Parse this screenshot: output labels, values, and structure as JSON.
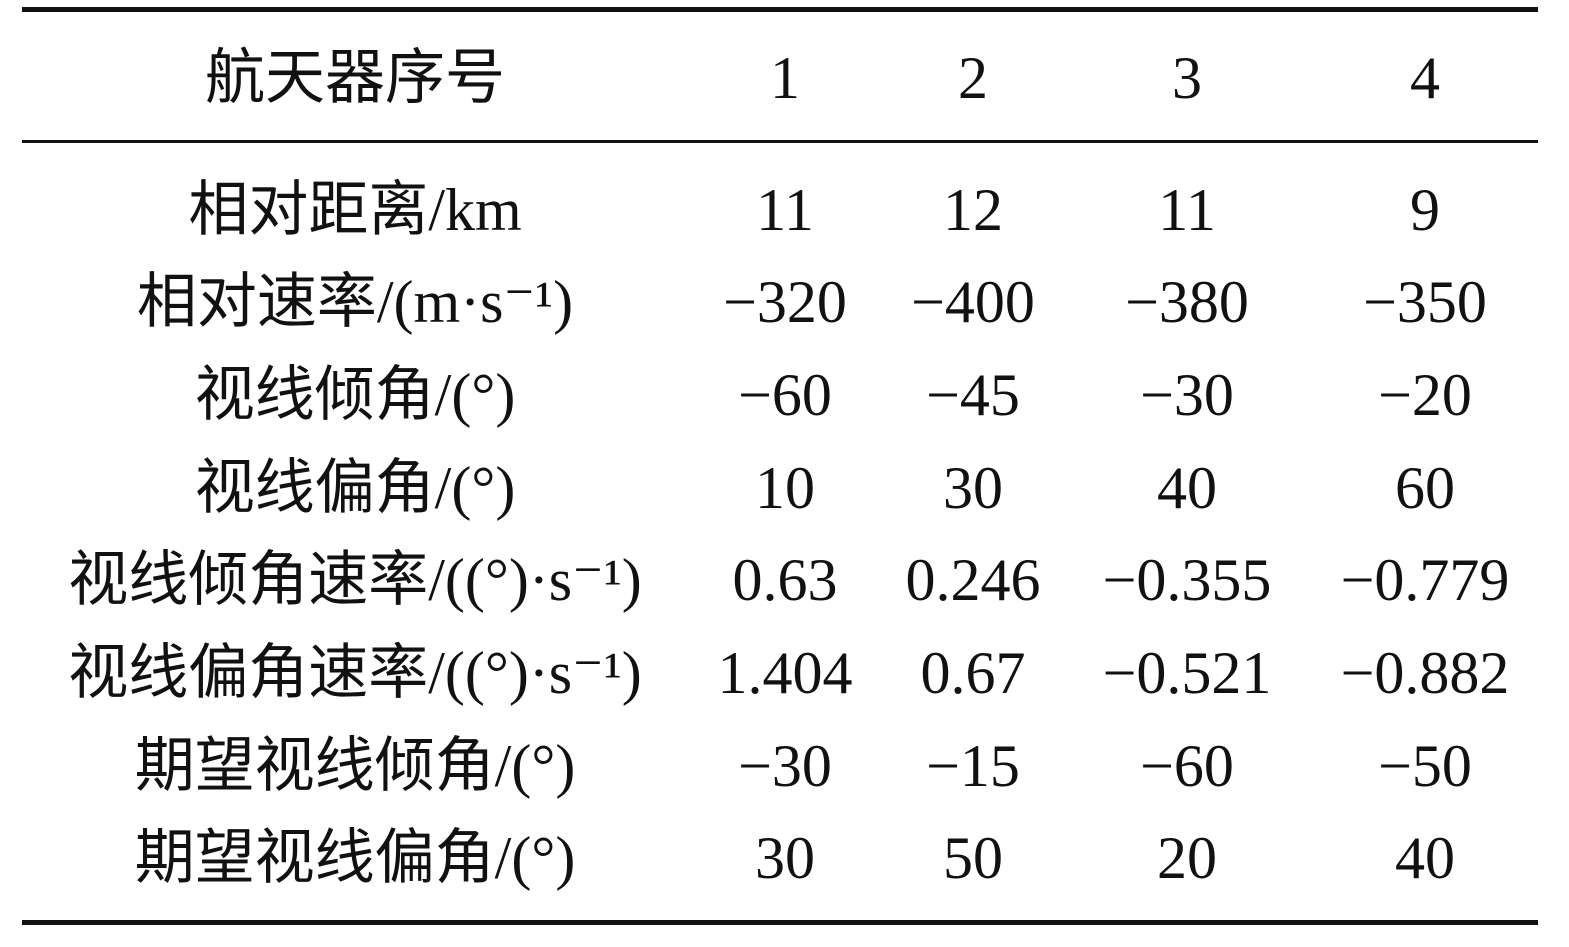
{
  "table": {
    "header": [
      "航天器序号",
      "1",
      "2",
      "3",
      "4"
    ],
    "rows": [
      [
        "相对距离/km",
        "11",
        "12",
        "11",
        "9"
      ],
      [
        "相对速率/(m·s⁻¹)",
        "−320",
        "−400",
        "−380",
        "−350"
      ],
      [
        "视线倾角/(°)",
        "−60",
        "−45",
        "−30",
        "−20"
      ],
      [
        "视线偏角/(°)",
        "10",
        "30",
        "40",
        "60"
      ],
      [
        "视线倾角速率/((°)·s⁻¹)",
        "0.63",
        "0.246",
        "−0.355",
        "−0.779"
      ],
      [
        "视线偏角速率/((°)·s⁻¹)",
        "1.404",
        "0.67",
        "−0.521",
        "−0.882"
      ],
      [
        "期望视线倾角/(°)",
        "−30",
        "−15",
        "−60",
        "−50"
      ],
      [
        "期望视线偏角/(°)",
        "30",
        "50",
        "20",
        "40"
      ]
    ]
  }
}
